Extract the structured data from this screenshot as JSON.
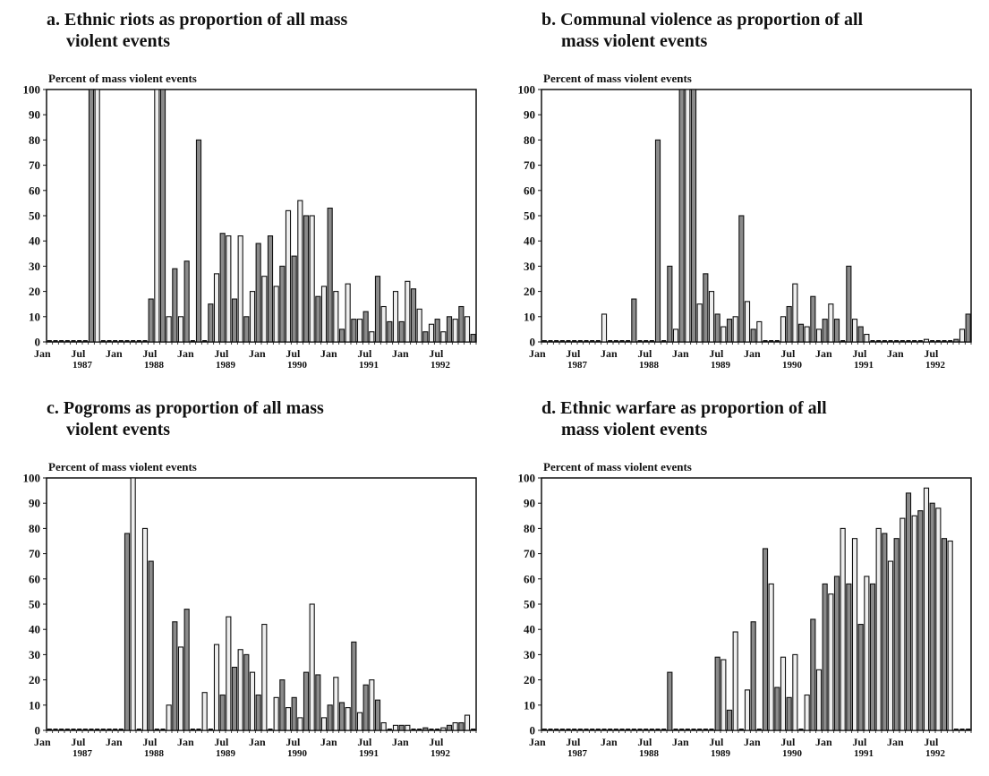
{
  "chart_data": [
    {
      "type": "bar",
      "title_line1": "a. Ethnic riots as proportion of all mass",
      "title_line2": "violent events",
      "ylabel": "Percent of mass violent events",
      "ylim": [
        0,
        100
      ],
      "yticks": [
        "0",
        "10",
        "20",
        "30",
        "40",
        "50",
        "60",
        "70",
        "80",
        "90",
        "100"
      ],
      "x_tick_labels": [
        "Jan",
        "Jul",
        "Jan",
        "Jul",
        "Jan",
        "Jul",
        "Jan",
        "Jul",
        "Jan",
        "Jul",
        "Jan",
        "Jul"
      ],
      "year_labels": [
        "1987",
        "1988",
        "1989",
        "1990",
        "1991",
        "1992"
      ],
      "start": "1987-01",
      "months": 72,
      "values": [
        0,
        0,
        0,
        0,
        0,
        0,
        0,
        100,
        100,
        0,
        0,
        0,
        0,
        0,
        0,
        0,
        0,
        17,
        100,
        100,
        10,
        29,
        10,
        32,
        0,
        80,
        0,
        15,
        27,
        43,
        42,
        17,
        42,
        10,
        20,
        39,
        26,
        42,
        22,
        30,
        52,
        34,
        56,
        50,
        50,
        18,
        22,
        53,
        20,
        5,
        23,
        9,
        9,
        12,
        4,
        26,
        14,
        8,
        20,
        8,
        24,
        21,
        13,
        4,
        7,
        9,
        4,
        10,
        9,
        14,
        10,
        3
      ]
    },
    {
      "type": "bar",
      "title_line1": "b. Communal violence as proportion of all",
      "title_line2": "mass violent events",
      "ylabel": "Percent of mass violent events",
      "ylim": [
        0,
        100
      ],
      "yticks": [
        "0",
        "10",
        "20",
        "30",
        "40",
        "50",
        "60",
        "70",
        "80",
        "90",
        "100"
      ],
      "x_tick_labels": [
        "Jan",
        "Jul",
        "Jan",
        "Jul",
        "Jan",
        "Jul",
        "Jan",
        "Jul",
        "Jan",
        "Jul",
        "Jan",
        "Jul"
      ],
      "year_labels": [
        "1987",
        "1988",
        "1989",
        "1990",
        "1991",
        "1992"
      ],
      "start": "1987-01",
      "months": 72,
      "values": [
        0,
        0,
        0,
        0,
        0,
        0,
        0,
        0,
        0,
        0,
        11,
        0,
        0,
        0,
        0,
        17,
        0,
        0,
        0,
        80,
        0,
        30,
        5,
        100,
        100,
        100,
        15,
        27,
        20,
        11,
        6,
        9,
        10,
        50,
        16,
        5,
        8,
        0,
        0,
        0,
        10,
        14,
        23,
        7,
        6,
        18,
        5,
        9,
        15,
        9,
        0,
        30,
        9,
        6,
        3,
        0,
        0,
        0,
        0,
        0,
        0,
        0,
        0,
        0,
        1,
        0,
        0,
        0,
        0,
        1,
        5,
        11
      ]
    },
    {
      "type": "bar",
      "title_line1": "c. Pogroms as proportion of all mass",
      "title_line2": "violent events",
      "ylabel": "Percent of mass violent events",
      "ylim": [
        0,
        100
      ],
      "yticks": [
        "0",
        "10",
        "20",
        "30",
        "40",
        "50",
        "60",
        "70",
        "80",
        "90",
        "100"
      ],
      "x_tick_labels": [
        "Jan",
        "Jul",
        "Jan",
        "Jul",
        "Jan",
        "Jul",
        "Jan",
        "Jul",
        "Jan",
        "Jul",
        "Jan",
        "Jul"
      ],
      "year_labels": [
        "1987",
        "1988",
        "1989",
        "1990",
        "1991",
        "1992"
      ],
      "start": "1987-01",
      "months": 72,
      "values": [
        0,
        0,
        0,
        0,
        0,
        0,
        0,
        0,
        0,
        0,
        0,
        0,
        0,
        78,
        100,
        0,
        80,
        67,
        0,
        0,
        10,
        43,
        33,
        48,
        0,
        0,
        15,
        0,
        34,
        14,
        45,
        25,
        32,
        30,
        23,
        14,
        42,
        0,
        13,
        20,
        9,
        13,
        5,
        23,
        50,
        22,
        5,
        10,
        21,
        11,
        9,
        35,
        7,
        18,
        20,
        12,
        3,
        0,
        2,
        2,
        2,
        0,
        0,
        1,
        0,
        0,
        1,
        2,
        3,
        3,
        6,
        0
      ]
    },
    {
      "type": "bar",
      "title_line1": "d. Ethnic warfare as proportion of all",
      "title_line2": "mass violent events",
      "ylabel": "Percent of mass violent events",
      "ylim": [
        0,
        100
      ],
      "yticks": [
        "0",
        "10",
        "20",
        "30",
        "40",
        "50",
        "60",
        "70",
        "80",
        "90",
        "100"
      ],
      "x_tick_labels": [
        "Jan",
        "Jul",
        "Jan",
        "Jul",
        "Jan",
        "Jul",
        "Jan",
        "Jul",
        "Jan",
        "Jul",
        "Jan",
        "Jul"
      ],
      "year_labels": [
        "1987",
        "1988",
        "1989",
        "1990",
        "1991",
        "1992"
      ],
      "start": "1987-01",
      "months": 72,
      "values": [
        0,
        0,
        0,
        0,
        0,
        0,
        0,
        0,
        0,
        0,
        0,
        0,
        0,
        0,
        0,
        0,
        0,
        0,
        0,
        0,
        0,
        23,
        0,
        0,
        0,
        0,
        0,
        0,
        0,
        29,
        28,
        8,
        39,
        0,
        16,
        43,
        0,
        72,
        58,
        17,
        29,
        13,
        30,
        0,
        14,
        44,
        24,
        58,
        54,
        61,
        80,
        58,
        76,
        42,
        61,
        58,
        80,
        78,
        67,
        76,
        84,
        94,
        85,
        87,
        96,
        90,
        88,
        76,
        75,
        0,
        0,
        0
      ]
    }
  ]
}
